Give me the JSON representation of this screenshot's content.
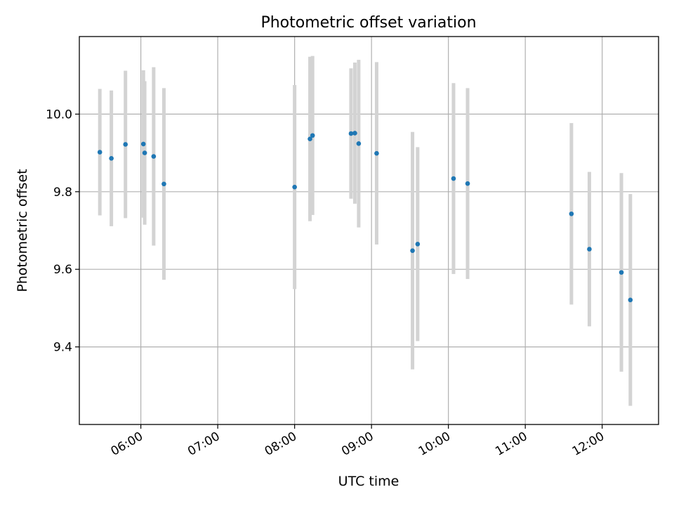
{
  "chart_data": {
    "type": "scatter",
    "title": "Photometric offset variation",
    "xlabel": "UTC time",
    "ylabel": "Photometric offset",
    "xlim": [
      "05:12",
      "12:44"
    ],
    "ylim": [
      9.2,
      10.2
    ],
    "xticks": [
      "06:00",
      "07:00",
      "08:00",
      "09:00",
      "10:00",
      "11:00",
      "12:00"
    ],
    "yticks": [
      9.4,
      9.6,
      9.8,
      10.0
    ],
    "grid": true,
    "colors": {
      "point": "#1f77b4",
      "errorbar": "#d3d3d3"
    },
    "series": [
      {
        "points": [
          {
            "x": "05:28",
            "y": 9.902,
            "yerr": 0.163
          },
          {
            "x": "05:37",
            "y": 9.886,
            "yerr": 0.175
          },
          {
            "x": "05:48",
            "y": 9.922,
            "yerr": 0.19
          },
          {
            "x": "06:02",
            "y": 9.923,
            "yerr": 0.19
          },
          {
            "x": "06:03",
            "y": 9.9,
            "yerr": 0.185
          },
          {
            "x": "06:10",
            "y": 9.891,
            "yerr": 0.23
          },
          {
            "x": "06:18",
            "y": 9.82,
            "yerr": 0.247
          },
          {
            "x": "08:00",
            "y": 9.812,
            "yerr": 0.263
          },
          {
            "x": "08:12",
            "y": 9.936,
            "yerr": 0.212
          },
          {
            "x": "08:14",
            "y": 9.945,
            "yerr": 0.205
          },
          {
            "x": "08:44",
            "y": 9.95,
            "yerr": 0.168
          },
          {
            "x": "08:47",
            "y": 9.951,
            "yerr": 0.182
          },
          {
            "x": "08:50",
            "y": 9.924,
            "yerr": 0.216
          },
          {
            "x": "09:04",
            "y": 9.899,
            "yerr": 0.235
          },
          {
            "x": "09:32",
            "y": 9.648,
            "yerr": 0.306
          },
          {
            "x": "09:36",
            "y": 9.665,
            "yerr": 0.25
          },
          {
            "x": "10:04",
            "y": 9.834,
            "yerr": 0.246
          },
          {
            "x": "10:15",
            "y": 9.821,
            "yerr": 0.246
          },
          {
            "x": "11:36",
            "y": 9.743,
            "yerr": 0.234
          },
          {
            "x": "11:50",
            "y": 9.652,
            "yerr": 0.199
          },
          {
            "x": "12:15",
            "y": 9.592,
            "yerr": 0.256
          },
          {
            "x": "12:22",
            "y": 9.521,
            "yerr": 0.273
          }
        ]
      }
    ]
  }
}
